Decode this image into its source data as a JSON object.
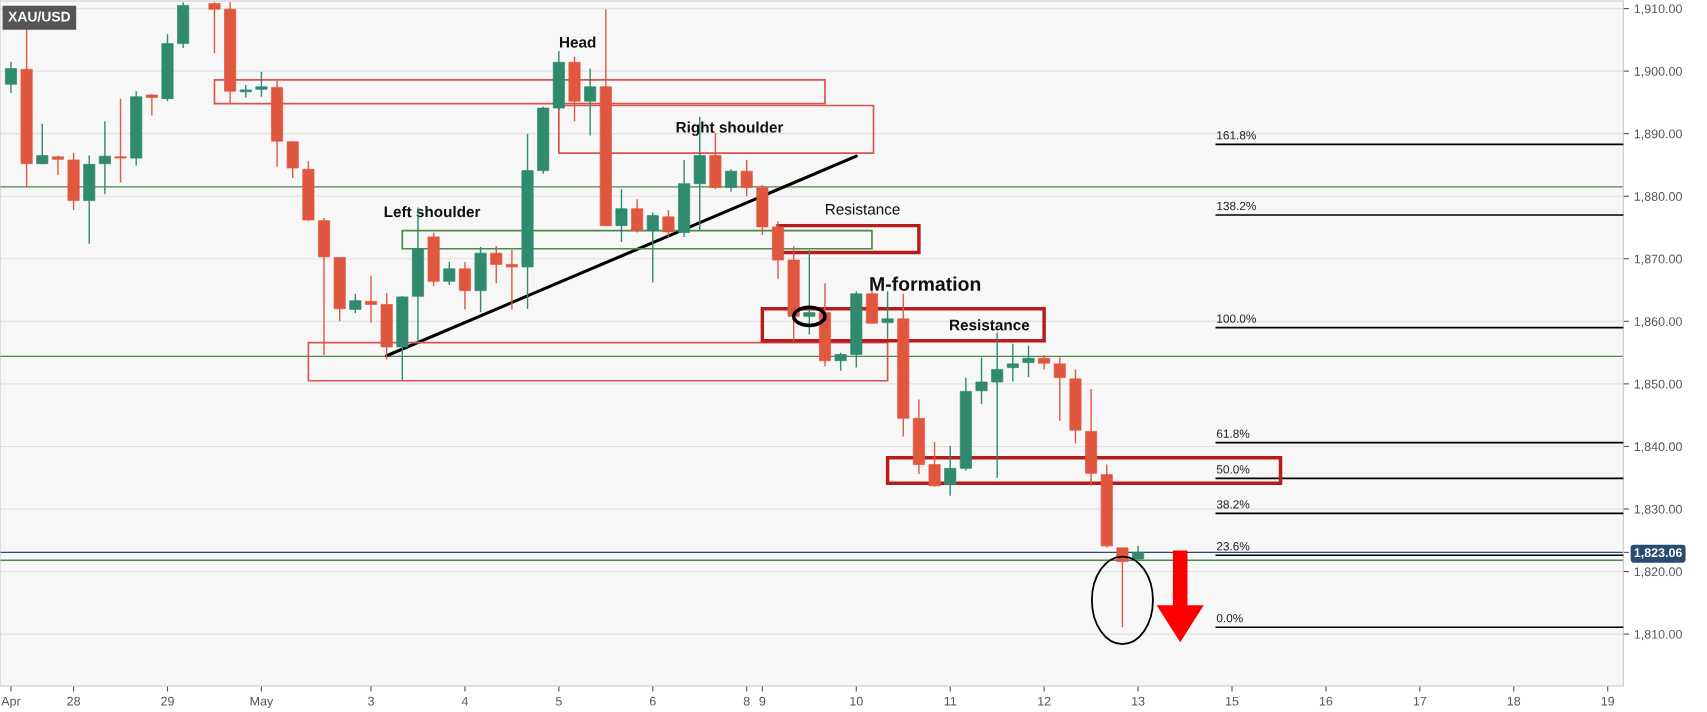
{
  "chart_data": {
    "type": "candlestick",
    "title": "XAU/USD",
    "categories": [
      "Apr",
      null,
      null,
      null,
      "28",
      null,
      null,
      null,
      null,
      null,
      "29",
      null,
      null,
      null,
      null,
      null,
      "May",
      null,
      null,
      null,
      null,
      null,
      null,
      "3",
      null,
      null,
      null,
      null,
      null,
      "4",
      null,
      null,
      null,
      null,
      null,
      "5",
      null,
      null,
      null,
      null,
      null,
      "6",
      null,
      null,
      null,
      null,
      null,
      "8",
      "9",
      null,
      null,
      null,
      null,
      null,
      "10",
      null,
      null,
      null,
      null,
      null,
      "11",
      null,
      null,
      null,
      null,
      null,
      "12",
      null,
      null,
      null,
      null,
      null,
      "13",
      null,
      null,
      null,
      null,
      null,
      "15",
      null,
      null,
      null,
      null,
      null,
      "16",
      null,
      null,
      null,
      null,
      null,
      "17",
      null,
      null,
      null,
      null,
      null,
      "18",
      null,
      null,
      null,
      null,
      null,
      "19"
    ],
    "ohlc": [
      [
        1897.9,
        1901.5,
        1896.5,
        1900.4
      ],
      [
        1900.3,
        1906.8,
        1881.4,
        1885.2
      ],
      [
        1885.2,
        1891.6,
        1885.1,
        1886.5
      ],
      [
        1886.3,
        1886.5,
        1883.4,
        1885.9
      ],
      [
        1885.8,
        1886.9,
        1877.8,
        1879.3
      ],
      [
        1879.3,
        1886.5,
        1872.4,
        1885.1
      ],
      [
        1885.2,
        1892.0,
        1880.3,
        1886.4
      ],
      [
        1886.3,
        1895.6,
        1882.2,
        1886.1
      ],
      [
        1886.1,
        1896.8,
        1884.9,
        1895.9
      ],
      [
        1896.2,
        1896.3,
        1892.9,
        1895.8
      ],
      [
        1895.6,
        1905.9,
        1895.2,
        1904.4
      ],
      [
        1904.4,
        1911.0,
        1903.7,
        1910.5
      ],
      null,
      [
        1910.8,
        1911.0,
        1902.8,
        1909.9
      ],
      [
        1909.9,
        1911.0,
        1894.9,
        1896.8
      ],
      [
        1896.7,
        1897.8,
        1895.8,
        1897.0
      ],
      [
        1897.1,
        1899.9,
        1895.9,
        1897.5
      ],
      [
        1897.4,
        1898.5,
        1884.7,
        1888.8
      ],
      [
        1888.7,
        1888.8,
        1882.9,
        1884.5
      ],
      [
        1884.3,
        1885.6,
        1876.0,
        1876.2
      ],
      [
        1876.1,
        1876.5,
        1854.6,
        1870.3
      ],
      [
        1870.2,
        1870.3,
        1860.0,
        1862.0
      ],
      [
        1861.9,
        1864.4,
        1861.3,
        1863.3
      ],
      [
        1863.2,
        1867.3,
        1859.8,
        1862.7
      ],
      [
        1862.7,
        1864.5,
        1853.9,
        1855.9
      ],
      [
        1855.9,
        1864.0,
        1850.6,
        1863.9
      ],
      [
        1864.0,
        1878.2,
        1856.4,
        1871.6
      ],
      [
        1873.5,
        1874.2,
        1865.6,
        1866.4
      ],
      [
        1866.4,
        1869.5,
        1865.8,
        1868.4
      ],
      [
        1868.4,
        1869.5,
        1861.9,
        1864.9
      ],
      [
        1864.9,
        1871.9,
        1861.5,
        1870.9
      ],
      [
        1870.9,
        1872.0,
        1866.1,
        1869.1
      ],
      [
        1869.1,
        1871.4,
        1861.9,
        1868.7
      ],
      [
        1868.7,
        1890.0,
        1862.0,
        1884.1
      ],
      [
        1884.1,
        1894.3,
        1883.6,
        1894.1
      ],
      [
        1894.1,
        1903.2,
        1893.8,
        1901.4
      ],
      [
        1901.4,
        1902.3,
        1892.0,
        1895.2
      ],
      [
        1895.2,
        1900.4,
        1889.7,
        1897.5
      ],
      [
        1897.5,
        1909.9,
        1875.2,
        1875.3
      ],
      [
        1875.3,
        1881.1,
        1872.7,
        1878.0
      ],
      [
        1878.0,
        1879.5,
        1874.2,
        1874.5
      ],
      [
        1874.5,
        1877.4,
        1866.2,
        1876.9
      ],
      [
        1876.7,
        1877.8,
        1873.5,
        1874.3
      ],
      [
        1874.2,
        1885.8,
        1873.5,
        1882.0
      ],
      [
        1882.0,
        1892.7,
        1874.5,
        1886.5
      ],
      [
        1886.5,
        1890.1,
        1881.1,
        1881.4
      ],
      [
        1881.4,
        1884.3,
        1880.7,
        1884.0
      ],
      [
        1884.0,
        1885.8,
        1880.0,
        1881.4
      ],
      [
        1881.4,
        1881.8,
        1873.8,
        1875.1
      ],
      [
        1875.1,
        1876.0,
        1866.8,
        1869.8
      ],
      [
        1869.8,
        1872.0,
        1856.8,
        1860.8
      ],
      [
        1860.8,
        1871.4,
        1857.9,
        1861.4
      ],
      [
        1861.4,
        1866.1,
        1852.8,
        1853.7
      ],
      [
        1853.7,
        1855.0,
        1852.1,
        1854.7
      ],
      [
        1854.7,
        1864.8,
        1852.6,
        1864.4
      ],
      [
        1864.4,
        1864.8,
        1859.6,
        1859.7
      ],
      [
        1859.8,
        1864.8,
        1857.2,
        1860.4
      ],
      [
        1860.4,
        1864.4,
        1841.6,
        1844.5
      ],
      [
        1844.5,
        1847.5,
        1835.6,
        1837.1
      ],
      [
        1837.1,
        1840.7,
        1833.6,
        1833.7
      ],
      [
        1833.9,
        1840.1,
        1832.1,
        1836.5
      ],
      [
        1836.5,
        1851.0,
        1836.1,
        1848.8
      ],
      [
        1848.9,
        1854.2,
        1846.8,
        1850.3
      ],
      [
        1850.3,
        1858.2,
        1835.0,
        1852.3
      ],
      [
        1852.6,
        1856.4,
        1850.4,
        1853.2
      ],
      [
        1853.4,
        1856.1,
        1851.1,
        1854.1
      ],
      [
        1854.1,
        1854.6,
        1852.3,
        1853.3
      ],
      [
        1853.2,
        1854.2,
        1844.1,
        1851.0
      ],
      [
        1850.8,
        1852.3,
        1840.5,
        1842.6
      ],
      [
        1842.4,
        1849.2,
        1833.7,
        1835.7
      ],
      [
        1835.5,
        1837.1,
        1823.8,
        1824.1
      ],
      [
        1823.8,
        1823.8,
        1811.1,
        1821.6
      ],
      [
        1822.0,
        1824.1,
        1821.9,
        1823.06
      ],
      null,
      null,
      null,
      null,
      null,
      null,
      null,
      null,
      null,
      null,
      null,
      null,
      null,
      null,
      null,
      null,
      null,
      null,
      null,
      null,
      null,
      null,
      null,
      null,
      null,
      null,
      null,
      null,
      null,
      null
    ],
    "colors": [
      "#2f8a6e",
      "#e0573f",
      "#2f8a6e",
      "#e0573f",
      "#e0573f",
      "#2f8a6e",
      "#2f8a6e",
      "#e0573f",
      "#2f8a6e",
      "#e0573f",
      "#2f8a6e",
      "#2f8a6e",
      null,
      "#e0573f",
      "#e0573f",
      "#2f8a6e",
      "#2f8a6e",
      "#e0573f",
      "#e0573f",
      "#e0573f",
      "#e0573f",
      "#e0573f",
      "#2f8a6e",
      "#e0573f",
      "#e0573f",
      "#2f8a6e",
      "#2f8a6e",
      "#e0573f",
      "#2f8a6e",
      "#e0573f",
      "#2f8a6e",
      "#e0573f",
      "#e0573f",
      "#2f8a6e",
      "#2f8a6e",
      "#2f8a6e",
      "#e0573f",
      "#2f8a6e",
      "#e0573f",
      "#2f8a6e",
      "#e0573f",
      "#2f8a6e",
      "#e0573f",
      "#2f8a6e",
      "#2f8a6e",
      "#e0573f",
      "#2f8a6e",
      "#e0573f",
      "#e0573f",
      "#e0573f",
      "#e0573f",
      "#2f8a6e",
      "#e0573f",
      "#2f8a6e",
      "#2f8a6e",
      "#e0573f",
      "#2f8a6e",
      "#e0573f",
      "#e0573f",
      "#e0573f",
      "#2f8a6e",
      "#2f8a6e",
      "#2f8a6e",
      "#2f8a6e",
      "#2f8a6e",
      "#2f8a6e",
      "#e0573f",
      "#e0573f",
      "#e0573f",
      "#e0573f",
      "#e0573f",
      "#e0573f",
      "#2f8a6e",
      null,
      null,
      null,
      null,
      null,
      null,
      null,
      null,
      null,
      null,
      null,
      null,
      null,
      null,
      null,
      null,
      null,
      null,
      null,
      null,
      null,
      null,
      null,
      null,
      null,
      null,
      null,
      null,
      null,
      null
    ],
    "series": [
      {
        "type": "line",
        "color": "#000000",
        "values": [
          null,
          null,
          null,
          null,
          null,
          null,
          null,
          null,
          null,
          null,
          null,
          null,
          null,
          null,
          null,
          null,
          null,
          null,
          null,
          null,
          null,
          null,
          null,
          null,
          1854.5,
          null,
          null,
          null,
          null,
          null,
          null,
          null,
          null,
          null,
          null,
          null,
          null,
          null,
          null,
          null,
          null,
          null,
          null,
          null,
          null,
          null,
          null,
          null,
          null,
          null,
          null,
          null,
          null,
          null,
          1886.4,
          null,
          null,
          null,
          null,
          null,
          null,
          null,
          null,
          null,
          null,
          null,
          null,
          null,
          null,
          null,
          null,
          null,
          null,
          null,
          null,
          null,
          null,
          null,
          null,
          null,
          null,
          null,
          null,
          null,
          null,
          null,
          null,
          null,
          null,
          null,
          null,
          null,
          null,
          null,
          null,
          null,
          null,
          null,
          null,
          null,
          null,
          null,
          null
        ]
      }
    ],
    "ylim": [
      1801.7,
      1911.2
    ],
    "yticks": [
      {
        "value": 1810,
        "label": "1,810.00"
      },
      {
        "value": 1820,
        "label": "1,820.00"
      },
      {
        "value": 1830,
        "label": "1,830.00"
      },
      {
        "value": 1840,
        "label": "1,840.00"
      },
      {
        "value": 1850,
        "label": "1,850.00"
      },
      {
        "value": 1860,
        "label": "1,860.00"
      },
      {
        "value": 1870,
        "label": "1,870.00"
      },
      {
        "value": 1880,
        "label": "1,880.00"
      },
      {
        "value": 1890,
        "label": "1,890.00"
      },
      {
        "value": 1900,
        "label": "1,900.00"
      },
      {
        "value": 1910,
        "label": "1,910.00"
      },
      {
        "value": 1823.06,
        "label": "1,823.06"
      }
    ],
    "grid": "y",
    "legend": false,
    "ref_lines": [
      {
        "axis": "y",
        "value": 1854.4,
        "color": "#4a8a4a"
      },
      {
        "axis": "y",
        "value": 1881.5,
        "color": "#4a8a4a"
      },
      {
        "axis": "y",
        "value": 1821.8,
        "color": "#4a8a4a"
      },
      {
        "axis": "y",
        "value": 1823.06,
        "color": "#2b4a6f"
      },
      {
        "axis": "y",
        "value": 1888.3,
        "color": "#000000"
      },
      {
        "axis": "y",
        "value": 1877.0,
        "color": "#000000"
      },
      {
        "axis": "y",
        "value": 1859.0,
        "color": "#000000"
      },
      {
        "axis": "y",
        "value": 1840.6,
        "color": "#000000"
      },
      {
        "axis": "y",
        "value": 1834.9,
        "color": "#000000"
      },
      {
        "axis": "y",
        "value": 1829.3,
        "color": "#000000"
      },
      {
        "axis": "y",
        "value": 1822.6,
        "color": "#000000"
      },
      {
        "axis": "y",
        "value": 1811.1,
        "color": "#000000"
      }
    ],
    "annotations": [
      "Head",
      "Left shoulder",
      "Right shoulder",
      "Resistance",
      "M-formation",
      "Resistance",
      {
        "text": "161.8%",
        "y": 1888.3
      },
      {
        "text": "138.2%",
        "y": 1877.0
      },
      {
        "text": "100.0%",
        "y": 1859.0
      },
      {
        "text": "61.8%",
        "y": 1840.6
      },
      {
        "text": "50.0%",
        "y": 1834.9
      },
      {
        "text": "38.2%",
        "y": 1829.3
      },
      {
        "text": "23.6%",
        "y": 1822.6
      },
      {
        "text": "0.0%",
        "y": 1811.1
      }
    ]
  }
}
